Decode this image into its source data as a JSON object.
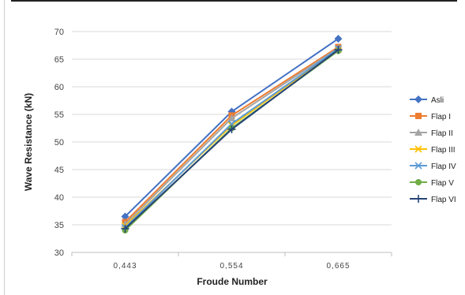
{
  "chart_data": {
    "type": "line",
    "title": "",
    "xlabel": "Froude Number",
    "ylabel": "Wave Resistance (kN)",
    "categories": [
      "0,443",
      "0,554",
      "0,665"
    ],
    "ylim": [
      30,
      70
    ],
    "yticks": [
      30,
      35,
      40,
      45,
      50,
      55,
      60,
      65,
      70
    ],
    "grid": "horizontal",
    "legend_position": "right",
    "series": [
      {
        "name": "Asli",
        "color": "#4472C4",
        "marker": "diamond",
        "values": [
          36.5,
          55.5,
          68.7
        ]
      },
      {
        "name": "Flap I",
        "color": "#ED7D31",
        "marker": "square",
        "values": [
          35.5,
          54.8,
          67.2
        ]
      },
      {
        "name": "Flap II",
        "color": "#A5A5A5",
        "marker": "triangle",
        "values": [
          35.1,
          54.3,
          67.0
        ]
      },
      {
        "name": "Flap III",
        "color": "#FFC000",
        "marker": "x",
        "values": [
          34.8,
          53.0,
          66.8
        ]
      },
      {
        "name": "Flap IV",
        "color": "#5B9BD5",
        "marker": "x",
        "values": [
          34.5,
          53.3,
          66.9
        ]
      },
      {
        "name": "Flap V",
        "color": "#70AD47",
        "marker": "circle",
        "values": [
          34.0,
          52.5,
          66.5
        ]
      },
      {
        "name": "Flap VI",
        "color": "#264478",
        "marker": "plus",
        "values": [
          34.3,
          52.3,
          66.7
        ]
      }
    ]
  }
}
